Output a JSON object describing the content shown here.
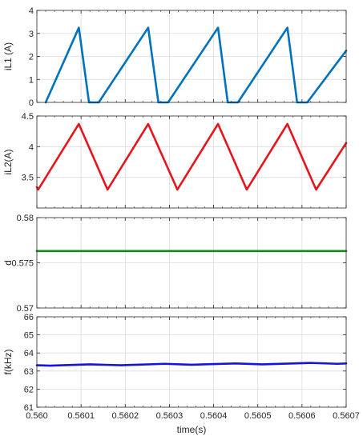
{
  "chart_data": [
    {
      "type": "line",
      "ylabel": "iL1 (A)",
      "xlabel": "",
      "xlim": [
        0.56,
        0.5607
      ],
      "ylim": [
        0,
        4
      ],
      "yticks": [
        0,
        1,
        2,
        3,
        4
      ],
      "ytick_labels": [
        "0",
        "1",
        "2",
        "3",
        "4"
      ],
      "grid": true,
      "series": [
        {
          "color": "#0072BD",
          "x": [
            0.56002,
            0.560095,
            0.560118,
            0.56014,
            0.560252,
            0.560275,
            0.560297,
            0.56041,
            0.560432,
            0.560455,
            0.560567,
            0.560589,
            0.560612,
            0.5607
          ],
          "y": [
            0,
            3.25,
            0,
            0,
            3.25,
            0,
            0,
            3.25,
            0,
            0,
            3.25,
            0,
            0,
            2.25
          ]
        }
      ]
    },
    {
      "type": "line",
      "ylabel": "iL2(A)",
      "xlabel": "",
      "xlim": [
        0.56,
        0.5607
      ],
      "ylim": [
        3,
        4.5
      ],
      "yticks": [
        3.5,
        4,
        4.5
      ],
      "ytick_labels": [
        "3.5",
        "4",
        "4.5"
      ],
      "grid": true,
      "series": [
        {
          "color": "#E8141B",
          "x": [
            0.56,
            0.560003,
            0.560095,
            0.56016,
            0.560252,
            0.560318,
            0.56041,
            0.560475,
            0.560567,
            0.560632,
            0.5607
          ],
          "y": [
            3.34,
            3.3,
            4.37,
            3.3,
            4.37,
            3.3,
            4.37,
            3.3,
            4.37,
            3.3,
            4.06
          ]
        }
      ]
    },
    {
      "type": "line",
      "ylabel": "d",
      "xlabel": "",
      "xlim": [
        0.56,
        0.5607
      ],
      "ylim": [
        0.57,
        0.58
      ],
      "yticks": [
        0.57,
        0.575,
        0.58
      ],
      "ytick_labels": [
        "0.57",
        "0.575",
        "0.58"
      ],
      "grid": true,
      "series": [
        {
          "color": "#0E8C1E",
          "x": [
            0.56,
            0.5607
          ],
          "y": [
            0.5763,
            0.5763
          ]
        }
      ]
    },
    {
      "type": "line",
      "ylabel": "f(kHz)",
      "xlabel": "time(s)",
      "xlim": [
        0.56,
        0.5607
      ],
      "ylim": [
        61,
        66
      ],
      "yticks": [
        61,
        62,
        63,
        64,
        65,
        66
      ],
      "ytick_labels": [
        "61",
        "62",
        "63",
        "64",
        "65",
        "66"
      ],
      "xticks": [
        0.56,
        0.5601,
        0.5602,
        0.5603,
        0.5604,
        0.5605,
        0.5606,
        0.5607
      ],
      "xtick_labels": [
        "0.560",
        "0.5601",
        "0.5602",
        "0.5603",
        "0.5604",
        "0.5605",
        "0.5606",
        "0.5607"
      ],
      "grid": true,
      "series": [
        {
          "color": "#1414E0",
          "x": [
            0.56,
            0.56003,
            0.56012,
            0.56019,
            0.56029,
            0.56035,
            0.56045,
            0.56051,
            0.56062,
            0.56068,
            0.5607
          ],
          "y": [
            63.32,
            63.3,
            63.37,
            63.32,
            63.4,
            63.35,
            63.42,
            63.37,
            63.45,
            63.4,
            63.42
          ]
        }
      ]
    }
  ]
}
